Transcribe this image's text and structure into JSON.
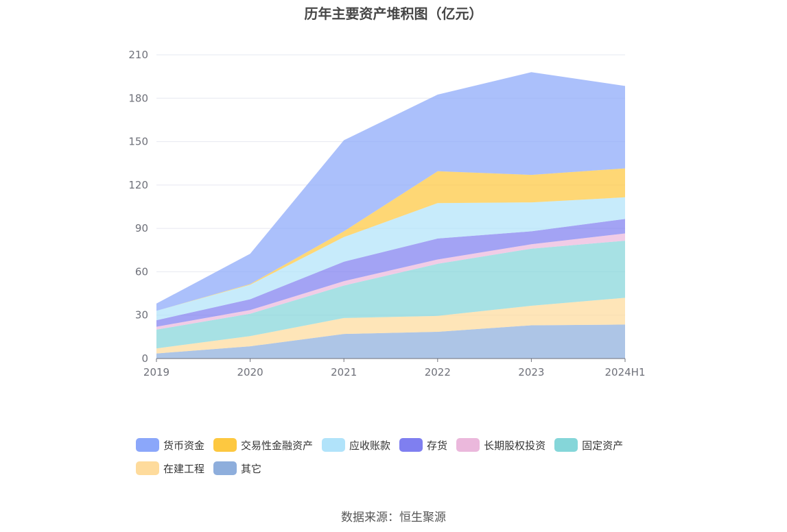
{
  "chart_data": {
    "type": "area",
    "stacked": true,
    "title": "历年主要资产堆积图（亿元）",
    "categories": [
      "2019",
      "2020",
      "2021",
      "2022",
      "2023",
      "2024H1"
    ],
    "y_ticks": [
      "0",
      "30",
      "60",
      "90",
      "120",
      "150",
      "180",
      "210"
    ],
    "ylim": [
      0,
      210
    ],
    "grid": true,
    "legend_position": "bottom",
    "series": [
      {
        "name": "其它",
        "color": "#8eaedc",
        "values": [
          3.5,
          8.5,
          17,
          18.5,
          23,
          23.5
        ]
      },
      {
        "name": "在建工程",
        "color": "#fedb9c",
        "values": [
          3.5,
          7,
          11,
          11,
          13.5,
          18.5
        ]
      },
      {
        "name": "固定资产",
        "color": "#85d6d9",
        "values": [
          13,
          15.5,
          22.5,
          36,
          39.5,
          39.5
        ]
      },
      {
        "name": "长期股权投资",
        "color": "#ebb8dc",
        "values": [
          2,
          2.5,
          3,
          3,
          3,
          5
        ]
      },
      {
        "name": "存货",
        "color": "#7f7ff0",
        "values": [
          4.5,
          7.5,
          13.5,
          14.5,
          9,
          10
        ]
      },
      {
        "name": "应收账款",
        "color": "#b1e3fa",
        "values": [
          6.5,
          10,
          17,
          24.5,
          20,
          15
        ]
      },
      {
        "name": "交易性金融资产",
        "color": "#fdc840",
        "values": [
          0,
          0.5,
          4,
          22,
          19,
          20
        ]
      },
      {
        "name": "货币资金",
        "color": "#8ba7fa",
        "values": [
          5,
          21,
          63,
          53,
          71,
          57
        ]
      }
    ]
  },
  "legend_order": [
    "货币资金",
    "交易性金融资产",
    "应收账款",
    "存货",
    "长期股权投资",
    "固定资产",
    "在建工程",
    "其它"
  ],
  "source": "数据来源：恒生聚源"
}
